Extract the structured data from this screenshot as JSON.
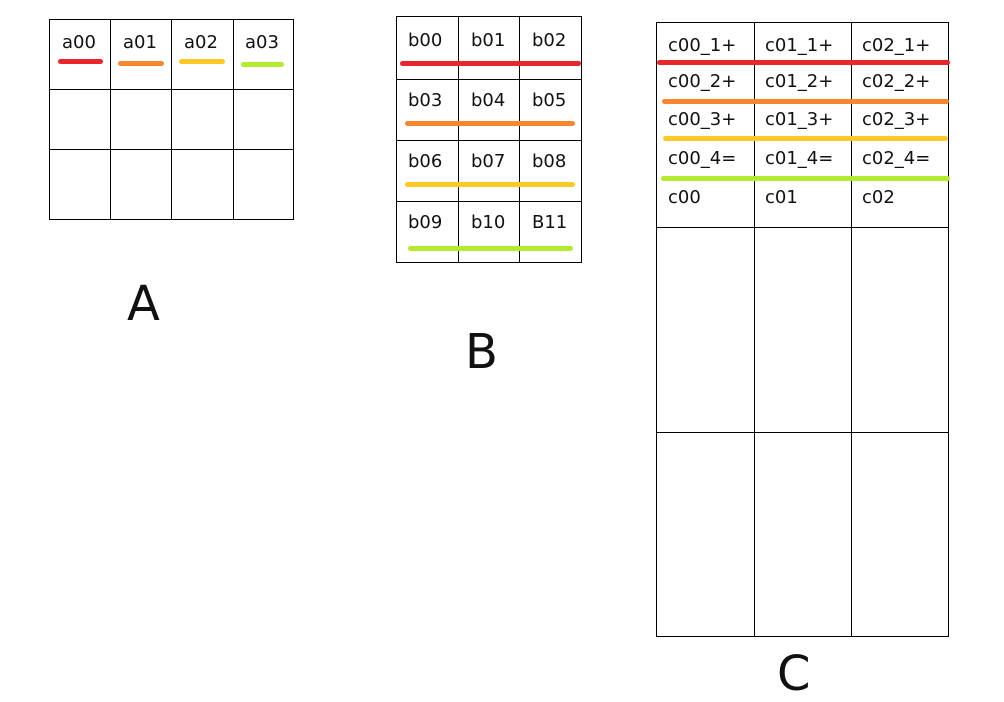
{
  "colors": {
    "red": "#e8262e",
    "orange": "#f7862e",
    "yellow": "#fdc828",
    "green": "#b4ea30"
  },
  "grid_a": {
    "caption": "A",
    "header": [
      "a00",
      "a01",
      "a02",
      "a03"
    ]
  },
  "grid_b": {
    "caption": "B",
    "rows": [
      [
        "b00",
        "b01",
        "b02"
      ],
      [
        "b03",
        "b04",
        "b05"
      ],
      [
        "b06",
        "b07",
        "b08"
      ],
      [
        "b09",
        "b10",
        "B11"
      ]
    ]
  },
  "grid_c": {
    "caption": "C",
    "lines": [
      [
        "c00_1+",
        "c01_1+",
        "c02_1+"
      ],
      [
        "c00_2+",
        "c01_2+",
        "c02_2+"
      ],
      [
        "c00_3+",
        "c01_3+",
        "c02_3+"
      ],
      [
        "c00_4=",
        "c01_4=",
        "c02_4="
      ],
      [
        "c00",
        "c01",
        "c02"
      ]
    ]
  }
}
